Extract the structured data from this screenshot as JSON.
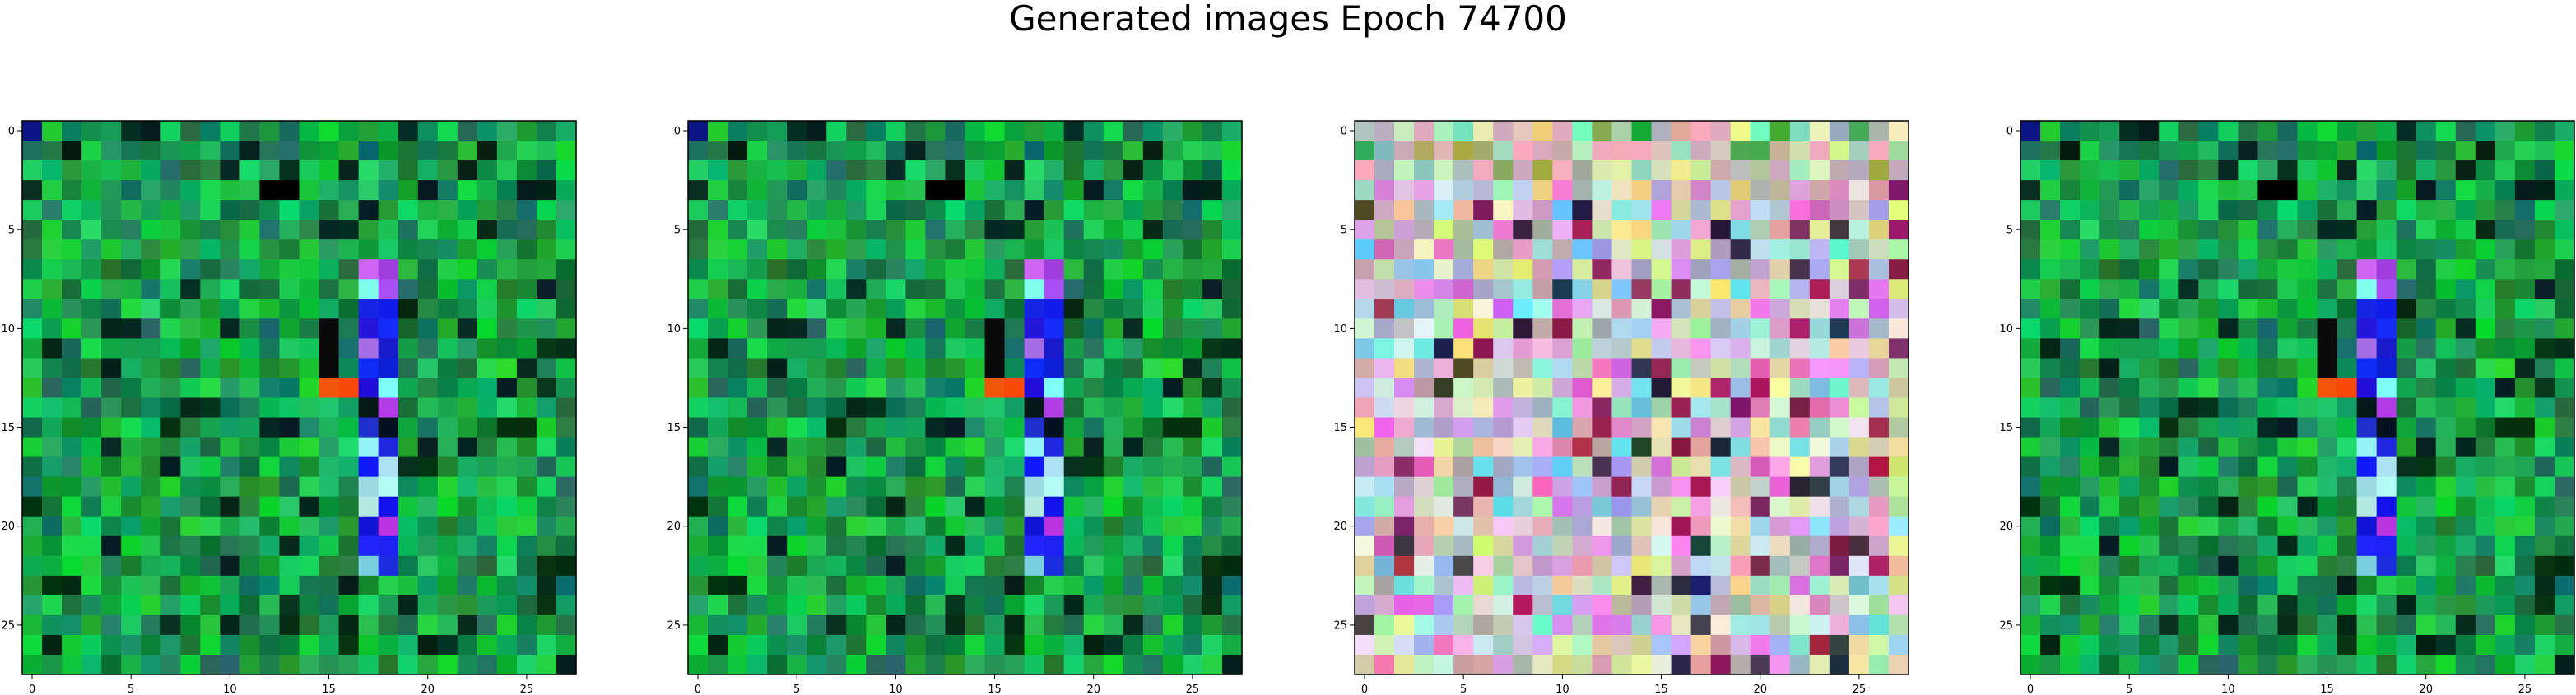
{
  "figure": {
    "title": "Generated images Epoch 74700",
    "panels": [
      {
        "id": "panel-1",
        "palette": "green",
        "seed": 11
      },
      {
        "id": "panel-2",
        "palette": "green",
        "seed": 11
      },
      {
        "id": "panel-3",
        "palette": "pastel",
        "seed": 57
      },
      {
        "id": "panel-4",
        "palette": "green",
        "seed": 11
      }
    ],
    "image_grid": {
      "rows": 28,
      "cols": 28
    },
    "x_ticks": [
      "0",
      "5",
      "10",
      "15",
      "20",
      "25"
    ],
    "y_ticks": [
      "0",
      "5",
      "10",
      "15",
      "20",
      "25"
    ],
    "x_tick_values": [
      0,
      5,
      10,
      15,
      20,
      25
    ],
    "y_tick_values": [
      0,
      5,
      10,
      15,
      20,
      25
    ]
  }
}
